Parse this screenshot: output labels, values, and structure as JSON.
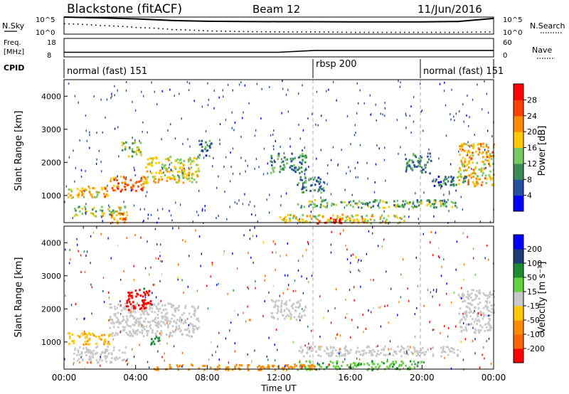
{
  "header": {
    "station": "Blackstone (fitACF)",
    "beam": "Beam 12",
    "date": "11/Jun/2016"
  },
  "strip_labels": {
    "nsky": "N.Sky",
    "nsearch": "N.Search",
    "noise_ticks": [
      "10^5",
      "10^0"
    ],
    "freq": "Freq.",
    "freq_unit": "[MHz]",
    "freq_ticks": [
      "18",
      "8"
    ],
    "nave": "Nave",
    "nave_ticks": [
      "60",
      "0"
    ],
    "cpid": "CPID"
  },
  "colors": {
    "power": [
      "#0000ff",
      "#2850a0",
      "#3c8c5a",
      "#78c864",
      "#ffc800",
      "#ff8c00",
      "#ff4000",
      "#ff0000"
    ],
    "velocity": [
      "#0000ff",
      "#1e3c78",
      "#1e8c32",
      "#64d23c",
      "#c8c8c8",
      "#ffc800",
      "#ff8c00",
      "#ff6400",
      "#ff0000"
    ]
  },
  "chart_data": [
    {
      "type": "line",
      "panel": "noise",
      "series": [
        {
          "name": "N.Sky",
          "x": [
            "00:00",
            "02:00",
            "04:00",
            "06:00",
            "08:00",
            "10:00",
            "12:00",
            "14:00",
            "16:00",
            "18:00",
            "20:00",
            "22:00",
            "24:00"
          ],
          "values": [
            100000,
            60000,
            30000,
            10000,
            6000,
            5000,
            4500,
            4500,
            4000,
            4000,
            4000,
            5000,
            40000
          ]
        },
        {
          "name": "N.Search",
          "x": [
            "00:00",
            "02:00",
            "04:00",
            "06:00",
            "08:00",
            "10:00",
            "12:00",
            "14:00",
            "16:00",
            "18:00",
            "20:00",
            "22:00",
            "24:00"
          ],
          "values": [
            1000,
            300,
            80,
            20,
            8,
            5,
            4,
            4,
            3,
            3,
            3,
            3,
            4
          ]
        }
      ],
      "yscale": "log",
      "ylim": [
        1,
        100000
      ]
    },
    {
      "type": "line",
      "panel": "freq-nave",
      "series": [
        {
          "name": "Freq.",
          "x": [
            "00:00",
            "04:00",
            "08:00",
            "12:00",
            "14:00",
            "16:00",
            "20:00",
            "24:00"
          ],
          "values": [
            10.5,
            10.5,
            10.5,
            10.5,
            11.5,
            11.5,
            11.5,
            11.5
          ]
        },
        {
          "name": "Nave",
          "x": [
            "00:00",
            "04:00",
            "08:00",
            "12:00",
            "14:00",
            "16:00",
            "20:00",
            "24:00"
          ],
          "values": [
            19,
            19,
            19,
            19,
            20,
            20,
            20,
            20
          ]
        }
      ],
      "ylim_freq": [
        8,
        18
      ],
      "ylim_nave": [
        0,
        60
      ]
    },
    {
      "type": "table",
      "panel": "cpid",
      "segments": [
        {
          "label": "normal (fast) 151",
          "start": "00:00",
          "end": "14:00"
        },
        {
          "label": "rbsp 200",
          "start": "14:00",
          "end": "20:00"
        },
        {
          "label": "normal (fast) 151",
          "start": "20:00",
          "end": "24:00"
        }
      ]
    },
    {
      "type": "heatmap",
      "panel": "power",
      "ylabel": "Slant Range [km]",
      "xlim": [
        0,
        24
      ],
      "ylim": [
        180,
        4500
      ],
      "yticks": [
        1000,
        2000,
        3000,
        4000
      ],
      "colorbar": {
        "label": "Power [dB]",
        "ticks": [
          "4",
          "8",
          "12",
          "16",
          "20",
          "24",
          "28"
        ],
        "range": [
          0,
          30
        ]
      },
      "bands": [
        {
          "t": [
            0.2,
            2.5
          ],
          "r": [
            950,
            1300
          ],
          "v": 18
        },
        {
          "t": [
            2.5,
            4.5
          ],
          "r": [
            1150,
            1600
          ],
          "v": 22
        },
        {
          "t": [
            4.5,
            7.5
          ],
          "r": [
            1400,
            2200
          ],
          "v": 16
        },
        {
          "t": [
            3.2,
            4.3
          ],
          "r": [
            2200,
            2650
          ],
          "v": 14
        },
        {
          "t": [
            7.5,
            8.2
          ],
          "r": [
            2200,
            2700
          ],
          "v": 8
        },
        {
          "t": [
            0.5,
            3.5
          ],
          "r": [
            400,
            700
          ],
          "v": 14
        },
        {
          "t": [
            2.5,
            3.5
          ],
          "r": [
            180,
            500
          ],
          "v": 20
        },
        {
          "t": [
            11.5,
            13.5
          ],
          "r": [
            1700,
            2300
          ],
          "v": 10
        },
        {
          "t": [
            13,
            14.5
          ],
          "r": [
            1100,
            1600
          ],
          "v": 9
        },
        {
          "t": [
            13,
            22
          ],
          "r": [
            650,
            900
          ],
          "v": 12
        },
        {
          "t": [
            12,
            19
          ],
          "r": [
            180,
            450
          ],
          "v": 16
        },
        {
          "t": [
            14,
            15.5
          ],
          "r": [
            180,
            350
          ],
          "v": 26
        },
        {
          "t": [
            19,
            20.5
          ],
          "r": [
            1700,
            2300
          ],
          "v": 9
        },
        {
          "t": [
            22,
            24
          ],
          "r": [
            1300,
            2600
          ],
          "v": 18
        },
        {
          "t": [
            20.5,
            22.5
          ],
          "r": [
            1300,
            1600
          ],
          "v": 7
        }
      ]
    },
    {
      "type": "heatmap",
      "panel": "velocity",
      "ylabel": "Slant Range [km]",
      "xlabel": "Time UT",
      "xlim": [
        0,
        24
      ],
      "ylim": [
        180,
        4500
      ],
      "yticks": [
        1000,
        2000,
        3000,
        4000
      ],
      "xticks": [
        "00:00",
        "04:00",
        "08:00",
        "12:00",
        "16:00",
        "20:00",
        "00:00"
      ],
      "colorbar": {
        "label": "Velocity [m s⁻¹]",
        "ticks": [
          "200",
          "100",
          "50",
          "15",
          "-15",
          "-50",
          "-100",
          "-200"
        ]
      },
      "bands": [
        {
          "t": [
            0.2,
            2.5
          ],
          "r": [
            950,
            1300
          ],
          "v": -30
        },
        {
          "t": [
            2.5,
            7.5
          ],
          "r": [
            1200,
            2200
          ],
          "v": 0
        },
        {
          "t": [
            3.4,
            4.8
          ],
          "r": [
            2000,
            2650
          ],
          "v": -250
        },
        {
          "t": [
            0.5,
            3.5
          ],
          "r": [
            400,
            900
          ],
          "v": 0
        },
        {
          "t": [
            4.8,
            5.4
          ],
          "r": [
            900,
            1200
          ],
          "v": 40
        },
        {
          "t": [
            11.5,
            13.5
          ],
          "r": [
            1700,
            2300
          ],
          "v": 0
        },
        {
          "t": [
            13,
            22
          ],
          "r": [
            600,
            900
          ],
          "v": 0
        },
        {
          "t": [
            13,
            20
          ],
          "r": [
            180,
            450
          ],
          "v": 30
        },
        {
          "t": [
            5,
            14
          ],
          "r": [
            180,
            350
          ],
          "v": -40
        },
        {
          "t": [
            22,
            24
          ],
          "r": [
            1300,
            2600
          ],
          "v": 0
        }
      ]
    }
  ]
}
